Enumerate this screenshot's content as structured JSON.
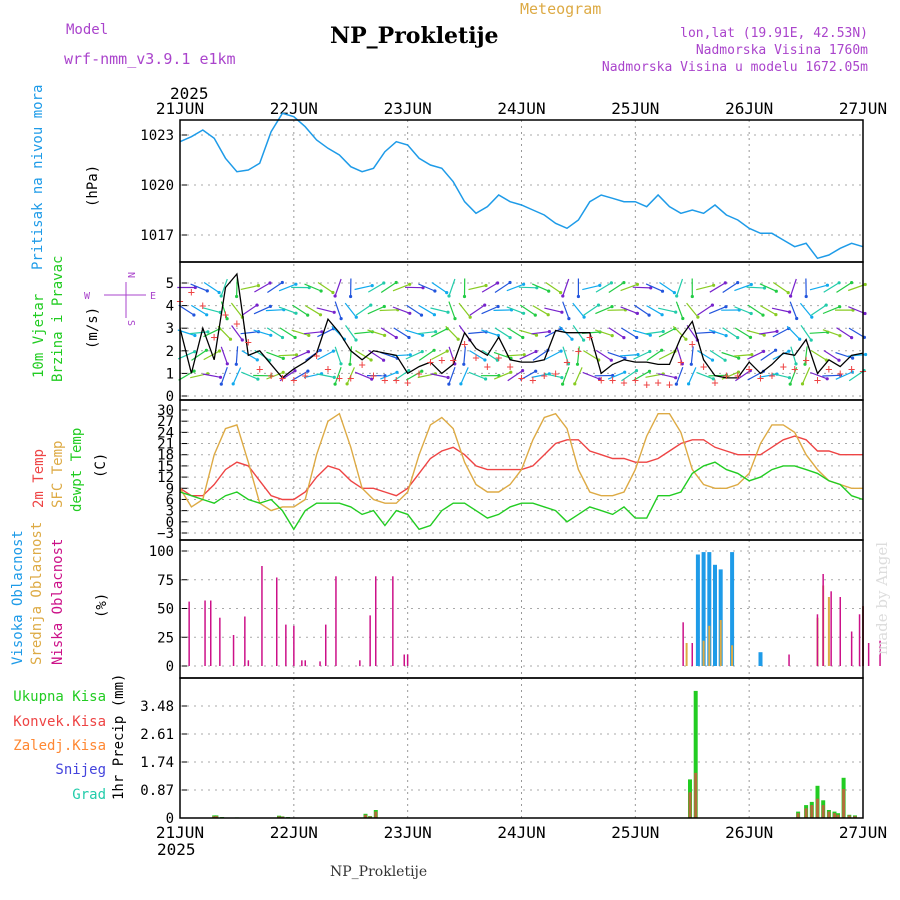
{
  "header": {
    "model_label": "Model",
    "model_name": "wrf-nmm_v3.9.1  e1km",
    "title": "NP_Prokletije",
    "subtitle": "Meteogram",
    "lonlat": "lon,lat (19.91E, 42.53N)",
    "altitude": "Nadmorska Visina 1760m",
    "model_altitude": "Nadmorska Visina u modelu 1672.05m",
    "footer_title": "NP_Prokletije",
    "credit": "made by Angel"
  },
  "colors": {
    "pressure": "#1e9be8",
    "wind_label": "#22cc22",
    "t2m": "#ee4444",
    "sfc": "#ddaa44",
    "dewpt": "#22cc22",
    "cloud_high": "#1e9be8",
    "cloud_mid": "#ddaa44",
    "cloud_low": "#cc1188",
    "precip_total": "#22cc22",
    "precip_conv": "#ee4444",
    "precip_strat": "#ff8833",
    "snow": "#4444dd",
    "hail": "#22ccaa",
    "purple_text": "#aa44cc"
  },
  "time_axis": {
    "year": "2025",
    "ticks": [
      "21JUN",
      "22JUN",
      "23JUN",
      "24JUN",
      "25JUN",
      "26JUN",
      "27JUN"
    ]
  },
  "panel_labels": {
    "pressure": [
      "Pritisak na nivou mora",
      "(hPa)"
    ],
    "wind": [
      "10m Vjetar",
      "Brzina i Pravac",
      "(m/s)"
    ],
    "wind_compass": [
      "N",
      "W",
      "E",
      "S"
    ],
    "temp": [
      "2m Temp",
      "SFC Temp",
      "dewpt Temp",
      "(C)"
    ],
    "cloud": [
      "Visoka Oblacnost",
      "Srednja Oblacnost",
      "Niska Oblacnost",
      "(%)"
    ],
    "precip_legend": [
      "Ukupna Kisa",
      "Konvek.Kisa",
      "Zaledj.Kisa",
      "Snijeg",
      "Grad"
    ],
    "precip_units": "1hr Precip (mm)"
  },
  "chart_data": [
    {
      "type": "line",
      "name": "pressure",
      "yticks": [
        "1017",
        "1020",
        "1023"
      ],
      "ylim": [
        1015,
        1025
      ],
      "x": [
        0,
        0.1,
        0.2,
        0.3,
        0.4,
        0.5,
        0.6,
        0.7,
        0.8,
        0.9,
        1.0,
        1.1,
        1.2,
        1.3,
        1.4,
        1.5,
        1.6,
        1.7,
        1.8,
        1.9,
        2.0,
        2.1,
        2.2,
        2.3,
        2.4,
        2.5,
        2.6,
        2.7,
        2.8,
        2.9,
        3.0,
        3.1,
        3.2,
        3.3,
        3.4,
        3.5,
        3.6,
        3.7,
        3.8,
        3.9,
        4.0,
        4.1,
        4.2,
        4.3,
        4.4,
        4.5,
        4.6,
        4.7,
        4.8,
        4.9,
        5.0,
        5.1,
        5.2,
        5.3,
        5.4,
        5.5,
        5.6,
        5.7,
        5.8,
        5.9,
        6.0
      ],
      "values": [
        1022.6,
        1022.9,
        1023.3,
        1022.8,
        1021.6,
        1020.8,
        1020.9,
        1021.3,
        1023.2,
        1024.3,
        1024.1,
        1023.5,
        1022.7,
        1022.2,
        1021.8,
        1021.1,
        1020.8,
        1021.0,
        1022.0,
        1022.6,
        1022.4,
        1021.6,
        1021.2,
        1021.0,
        1020.2,
        1019.0,
        1018.3,
        1018.7,
        1019.4,
        1019.0,
        1018.8,
        1018.5,
        1018.2,
        1017.7,
        1017.4,
        1017.9,
        1019.0,
        1019.4,
        1019.2,
        1019.0,
        1019.0,
        1018.7,
        1019.4,
        1018.7,
        1018.3,
        1018.5,
        1018.3,
        1018.8,
        1018.2,
        1017.9,
        1017.4,
        1017.1,
        1017.1,
        1016.7,
        1016.3,
        1016.5,
        1015.6,
        1015.8,
        1016.2,
        1016.5,
        1016.3
      ]
    },
    {
      "type": "line",
      "name": "wind",
      "yticks": [
        "0",
        "1",
        "2",
        "3",
        "4",
        "5"
      ],
      "ylim": [
        0,
        5.8
      ],
      "x": [
        0,
        0.1,
        0.2,
        0.3,
        0.4,
        0.5,
        0.6,
        0.7,
        0.8,
        0.9,
        1.0,
        1.1,
        1.2,
        1.3,
        1.4,
        1.5,
        1.6,
        1.7,
        1.8,
        1.9,
        2.0,
        2.1,
        2.2,
        2.3,
        2.4,
        2.5,
        2.6,
        2.7,
        2.8,
        2.9,
        3.0,
        3.1,
        3.2,
        3.3,
        3.4,
        3.5,
        3.6,
        3.7,
        3.8,
        3.9,
        4.0,
        4.1,
        4.2,
        4.3,
        4.4,
        4.5,
        4.6,
        4.7,
        4.8,
        4.9,
        5.0,
        5.1,
        5.2,
        5.3,
        5.4,
        5.5,
        5.6,
        5.7,
        5.8,
        5.9,
        6.0
      ],
      "speed": [
        3.0,
        1.0,
        3.0,
        1.6,
        4.8,
        5.4,
        1.8,
        2.0,
        1.4,
        0.8,
        1.2,
        1.5,
        1.9,
        3.4,
        2.8,
        2.0,
        1.6,
        2.0,
        1.9,
        1.8,
        1.0,
        1.3,
        1.5,
        1.0,
        1.4,
        2.8,
        2.1,
        1.8,
        2.6,
        1.6,
        1.5,
        1.5,
        1.6,
        2.9,
        2.8,
        2.8,
        2.8,
        1.0,
        1.4,
        1.6,
        1.5,
        1.5,
        1.4,
        1.4,
        2.6,
        3.3,
        1.6,
        0.9,
        0.8,
        0.8,
        1.5,
        1.0,
        1.4,
        1.9,
        1.8,
        2.5,
        1.0,
        1.6,
        1.3,
        1.8,
        1.9
      ],
      "gust": [
        4.2,
        4.6,
        4.0,
        2.6,
        3.6,
        3.2,
        2.4,
        1.2,
        0.9,
        0.8,
        0.7,
        0.9,
        1.8,
        1.2,
        0.8,
        0.8,
        1.4,
        0.9,
        0.7,
        0.7,
        0.6,
        1.0,
        1.5,
        1.6,
        1.6,
        2.3,
        1.7,
        1.3,
        1.7,
        1.3,
        0.8,
        0.7,
        0.9,
        1.0,
        1.5,
        2.0,
        2.6,
        0.7,
        0.7,
        0.6,
        0.7,
        0.5,
        0.6,
        0.5,
        1.5,
        2.3,
        1.3,
        0.6,
        0.9,
        0.9,
        1.2,
        0.8,
        0.9,
        1.3,
        1.2,
        1.6,
        0.7,
        1.2,
        1.0,
        1.2,
        1.1
      ]
    },
    {
      "type": "line",
      "name": "temperature",
      "yticks": [
        "−3",
        "0",
        "3",
        "6",
        "9",
        "12",
        "15",
        "18",
        "21",
        "24",
        "27",
        "30"
      ],
      "ylim": [
        -4,
        31
      ],
      "x": [
        0,
        0.1,
        0.2,
        0.3,
        0.4,
        0.5,
        0.6,
        0.7,
        0.8,
        0.9,
        1.0,
        1.1,
        1.2,
        1.3,
        1.4,
        1.5,
        1.6,
        1.7,
        1.8,
        1.9,
        2.0,
        2.1,
        2.2,
        2.3,
        2.4,
        2.5,
        2.6,
        2.7,
        2.8,
        2.9,
        3.0,
        3.1,
        3.2,
        3.3,
        3.4,
        3.5,
        3.6,
        3.7,
        3.8,
        3.9,
        4.0,
        4.1,
        4.2,
        4.3,
        4.4,
        4.5,
        4.6,
        4.7,
        4.8,
        4.9,
        5.0,
        5.1,
        5.2,
        5.3,
        5.4,
        5.5,
        5.6,
        5.7,
        5.8,
        5.9,
        6.0
      ],
      "series": [
        {
          "name": "2m Temp",
          "values": [
            9,
            7,
            7,
            10,
            14,
            16,
            15,
            11,
            7,
            6,
            6,
            8,
            12,
            15,
            14,
            11,
            9,
            9,
            8,
            7,
            9,
            13,
            17,
            19,
            20,
            18,
            15,
            14,
            14,
            14,
            14,
            15,
            18,
            21,
            22,
            22,
            19,
            18,
            17,
            17,
            16,
            16,
            17,
            19,
            21,
            22,
            22,
            20,
            19,
            18,
            18,
            18,
            20,
            22,
            23,
            22,
            19,
            19,
            18,
            18,
            18
          ]
        },
        {
          "name": "SFC Temp",
          "values": [
            9,
            4,
            6,
            18,
            25,
            26,
            16,
            5,
            3,
            4,
            4,
            6,
            18,
            27,
            29,
            20,
            9,
            6,
            5,
            5,
            8,
            18,
            26,
            28,
            25,
            16,
            10,
            8,
            8,
            10,
            14,
            22,
            28,
            29,
            25,
            14,
            8,
            7,
            7,
            8,
            14,
            23,
            29,
            29,
            24,
            14,
            10,
            9,
            9,
            10,
            13,
            21,
            26,
            26,
            24,
            18,
            14,
            11,
            10,
            9,
            9
          ]
        },
        {
          "name": "dewpt Temp",
          "values": [
            8,
            7,
            6,
            5,
            7,
            8,
            6,
            5,
            6,
            3,
            -2,
            3,
            5,
            5,
            5,
            4,
            2,
            3,
            -1,
            3,
            2,
            -2,
            -1,
            3,
            5,
            5,
            3,
            1,
            2,
            4,
            5,
            5,
            4,
            3,
            0,
            2,
            4,
            3,
            2,
            4,
            1,
            1,
            7,
            7,
            8,
            13,
            15,
            16,
            14,
            13,
            11,
            12,
            14,
            15,
            15,
            14,
            13,
            11,
            10,
            7,
            6
          ]
        }
      ]
    },
    {
      "type": "bar",
      "name": "cloud",
      "yticks": [
        "0",
        "25",
        "50",
        "75",
        "100"
      ],
      "ylim": [
        0,
        100
      ],
      "x_high": [
        4.55,
        4.6,
        4.65,
        4.7,
        4.75,
        4.85,
        5.1
      ],
      "high": [
        97,
        99,
        99,
        88,
        84,
        99,
        12
      ],
      "x_mid": [
        4.45,
        4.6,
        4.65,
        4.75,
        4.85,
        5.6,
        5.65,
        5.7,
        6.0
      ],
      "mid": [
        20,
        22,
        35,
        40,
        18,
        42,
        70,
        60,
        52
      ],
      "x_low": [
        0.08,
        0.22,
        0.27,
        0.35,
        0.47,
        0.57,
        0.6,
        0.72,
        0.85,
        0.93,
        1.0,
        1.07,
        1.1,
        1.23,
        1.28,
        1.37,
        1.58,
        1.67,
        1.72,
        1.87,
        1.97,
        2.0,
        4.42,
        4.5,
        5.35,
        5.6,
        5.65,
        5.72,
        5.8,
        5.9,
        5.97,
        6.0,
        6.05,
        6.15
      ],
      "low": [
        56,
        57,
        57,
        42,
        27,
        43,
        5,
        87,
        77,
        36,
        35,
        5,
        5,
        4,
        36,
        78,
        5,
        44,
        78,
        78,
        10,
        10,
        38,
        20,
        10,
        45,
        80,
        65,
        60,
        30,
        45,
        52,
        20,
        22
      ]
    },
    {
      "type": "bar",
      "name": "precip",
      "yticks": [
        "0",
        "0.87",
        "1.74",
        "2.61",
        "3.48"
      ],
      "ylim": [
        0,
        3.9
      ],
      "x": [
        0.3,
        0.32,
        0.37,
        0.5,
        0.87,
        0.9,
        0.95,
        1.63,
        1.67,
        1.72,
        4.48,
        4.53,
        5.43,
        5.5,
        5.55,
        5.6,
        5.65,
        5.7,
        5.75,
        5.78,
        5.83,
        5.88,
        5.93
      ],
      "total": [
        0.08,
        0.08,
        0.03,
        0.02,
        0.07,
        0.05,
        0.03,
        0.13,
        0.06,
        0.25,
        1.2,
        3.95,
        0.2,
        0.4,
        0.5,
        1.0,
        0.55,
        0.25,
        0.2,
        0.15,
        1.25,
        0.1,
        0.08
      ],
      "convective": [
        0.06,
        0.06,
        0.02,
        0.01,
        0.05,
        0.04,
        0.02,
        0.1,
        0.05,
        0.2,
        0.8,
        1.4,
        0.15,
        0.3,
        0.4,
        0.6,
        0.4,
        0.2,
        0.15,
        0.1,
        0.9,
        0.08,
        0.06
      ]
    }
  ]
}
